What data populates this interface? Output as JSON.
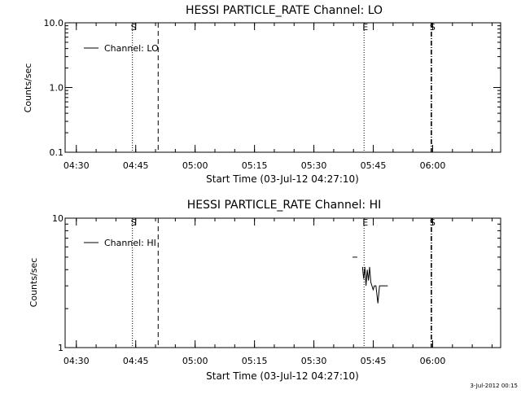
{
  "footer_timestamp": "3-Jul-2012 00:15",
  "chart_data": [
    {
      "type": "line",
      "title": "HESSI PARTICLE_RATE Channel: LO",
      "xlabel": "Start Time (03-Jul-12 04:27:10)",
      "ylabel": "Counts/sec",
      "y_scale": "log",
      "ylim": [
        0.1,
        10.0
      ],
      "yticks": [
        0.1,
        1.0,
        10.0
      ],
      "ytick_labels": [
        "0.1",
        "1.0",
        "10.0"
      ],
      "x_unit": "minutes after 04:27:10",
      "xlim": [
        0,
        110
      ],
      "xticks": [
        2.83,
        17.83,
        32.83,
        47.83,
        62.83,
        77.83,
        92.83
      ],
      "xtick_labels": [
        "04:30",
        "04:45",
        "05:00",
        "05:15",
        "05:30",
        "05:45",
        "06:00"
      ],
      "legend": {
        "label": "Channel: LO",
        "placement": "top-left"
      },
      "markers": [
        {
          "x": 17.0,
          "label": "S",
          "style": "dotted"
        },
        {
          "x": 23.5,
          "label": "",
          "style": "dashed"
        },
        {
          "x": 75.5,
          "label": "E",
          "style": "dotted"
        },
        {
          "x": 92.5,
          "label": "S",
          "style": "dash-dot"
        }
      ],
      "series": [
        {
          "name": "Channel: LO",
          "x": [],
          "y": []
        }
      ]
    },
    {
      "type": "line",
      "title": "HESSI PARTICLE_RATE Channel: HI",
      "xlabel": "Start Time (03-Jul-12 04:27:10)",
      "ylabel": "Counts/sec",
      "y_scale": "log",
      "ylim": [
        1,
        10
      ],
      "yticks": [
        1,
        10
      ],
      "ytick_labels": [
        "1",
        "10"
      ],
      "x_unit": "minutes after 04:27:10",
      "xlim": [
        0,
        110
      ],
      "xticks": [
        2.83,
        17.83,
        32.83,
        47.83,
        62.83,
        77.83,
        92.83
      ],
      "xtick_labels": [
        "04:30",
        "04:45",
        "05:00",
        "05:15",
        "05:30",
        "05:45",
        "06:00"
      ],
      "legend": {
        "label": "Channel: HI",
        "placement": "top-left"
      },
      "markers": [
        {
          "x": 17.0,
          "label": "S",
          "style": "dotted"
        },
        {
          "x": 23.5,
          "label": "",
          "style": "dashed"
        },
        {
          "x": 75.5,
          "label": "E",
          "style": "dotted"
        },
        {
          "x": 92.5,
          "label": "S",
          "style": "dash-dot"
        }
      ],
      "series": [
        {
          "name": "Channel: HI",
          "segments": [
            {
              "x": [
                72.6,
                73.8
              ],
              "y": [
                5.0,
                5.0
              ]
            },
            {
              "x": [
                75.1,
                75.4,
                75.7,
                76.0,
                76.3,
                76.6,
                76.9,
                77.2,
                77.5,
                77.8,
                78.1,
                78.5,
                79.0,
                79.4,
                79.8,
                80.3,
                81.5
              ],
              "y": [
                4.2,
                3.4,
                4.2,
                3.0,
                4.0,
                3.3,
                4.2,
                3.2,
                3.0,
                2.8,
                3.0,
                3.0,
                2.2,
                3.0,
                3.0,
                3.0,
                3.0
              ]
            }
          ]
        }
      ]
    }
  ]
}
